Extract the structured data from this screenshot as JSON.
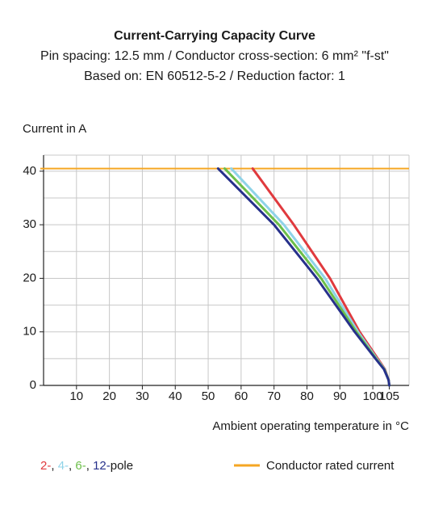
{
  "chart_data": {
    "type": "line",
    "title": "Current-Carrying Capacity Curve",
    "subtitle": [
      "Pin spacing: 12.5 mm / Conductor cross-section: 6 mm² \"f-st\"",
      "Based on: EN 60512-5-2 / Reduction factor: 1"
    ],
    "y_label": "Current in A",
    "x_label": "Ambient operating temperature in °C",
    "xlim": [
      0,
      111
    ],
    "ylim": [
      0,
      43
    ],
    "xticks": [
      10,
      20,
      30,
      40,
      50,
      60,
      70,
      80,
      90,
      100,
      105
    ],
    "yticks": [
      0,
      10,
      20,
      30,
      40
    ],
    "yminorticks": [
      5,
      15,
      25,
      35
    ],
    "grid": true,
    "series": [
      {
        "name": "2-",
        "color": "#e03a3e",
        "x": [
          63.5,
          76,
          87,
          96,
          101.5,
          103.7,
          104.8,
          105
        ],
        "values": [
          40.5,
          30,
          20,
          10,
          5,
          3,
          1,
          0
        ]
      },
      {
        "name": "4-",
        "color": "#8fd3e8",
        "x": [
          57,
          73,
          85.5,
          95.5,
          101.2,
          103.6,
          104.8,
          105
        ],
        "values": [
          40.5,
          30,
          20,
          10,
          5,
          3,
          1,
          0
        ]
      },
      {
        "name": "6-",
        "color": "#6cbf4a",
        "x": [
          55,
          71.5,
          84.3,
          95,
          101,
          103.5,
          104.8,
          105
        ],
        "values": [
          40.5,
          30,
          20,
          10,
          5,
          3,
          1,
          0
        ]
      },
      {
        "name": "12-",
        "color": "#27318b",
        "x": [
          53,
          70,
          83,
          94.5,
          100.8,
          103.4,
          104.8,
          105
        ],
        "values": [
          40.5,
          30,
          20,
          10,
          5,
          3,
          1,
          0
        ]
      }
    ],
    "legend_separator": ",",
    "legend_suffix": "pole",
    "reference_line": {
      "name": "Conductor rated current",
      "color": "#f5a623",
      "value": 40.5
    }
  }
}
